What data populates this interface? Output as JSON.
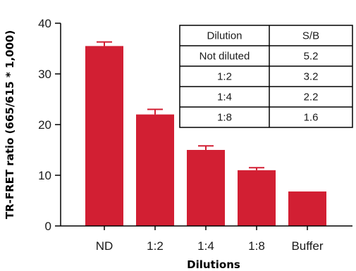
{
  "chart_data": {
    "type": "bar",
    "categories": [
      "ND",
      "1:2",
      "1:4",
      "1:8",
      "Buffer"
    ],
    "values": [
      35.5,
      22.0,
      15.0,
      11.0,
      6.8
    ],
    "errors": [
      0.8,
      1.0,
      0.8,
      0.5,
      0
    ],
    "xlabel": "Dilutions",
    "ylabel": "TR-FRET ratio  (665/615 * 1,000)",
    "ylim": [
      0,
      40
    ],
    "yticks": [
      0,
      10,
      20,
      30,
      40
    ],
    "grid": false,
    "bar_color": "#d21f33",
    "table": {
      "headers": [
        "Dilution",
        "S/B"
      ],
      "rows": [
        [
          "Not diluted",
          "5.2"
        ],
        [
          "1:2",
          "3.2"
        ],
        [
          "1:4",
          "2.2"
        ],
        [
          "1:8",
          "1.6"
        ]
      ]
    }
  }
}
